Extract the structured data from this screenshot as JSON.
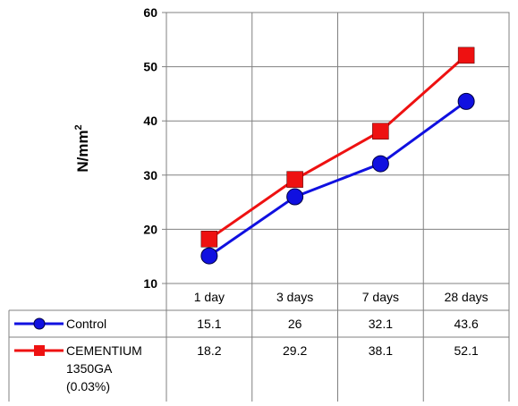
{
  "chart_data": {
    "type": "line",
    "title": "",
    "xlabel": "",
    "ylabel_base": "N/mm",
    "ylabel_superscript": "2",
    "ylim": [
      10,
      60
    ],
    "yticks": [
      10,
      20,
      30,
      40,
      50,
      60
    ],
    "categories": [
      "1 day",
      "3 days",
      "7 days",
      "28 days"
    ],
    "grid": "horizontal and vertical",
    "legend": "data table below plot",
    "series": [
      {
        "name": "Control",
        "name_lines": [
          "Control"
        ],
        "values": [
          15.1,
          26,
          32.1,
          43.6
        ],
        "value_labels": [
          "15.1",
          "26",
          "32.1",
          "43.6"
        ],
        "color": "#1010e0",
        "marker": "circle"
      },
      {
        "name": "CEMENTIUM 1350GA (0.03%)",
        "name_lines": [
          "CEMENTIUM",
          "1350GA",
          "(0.03%)"
        ],
        "values": [
          18.2,
          29.2,
          38.1,
          52.1
        ],
        "value_labels": [
          "18.2",
          "29.2",
          "38.1",
          "52.1"
        ],
        "color": "#ee1111",
        "marker": "square"
      }
    ]
  }
}
